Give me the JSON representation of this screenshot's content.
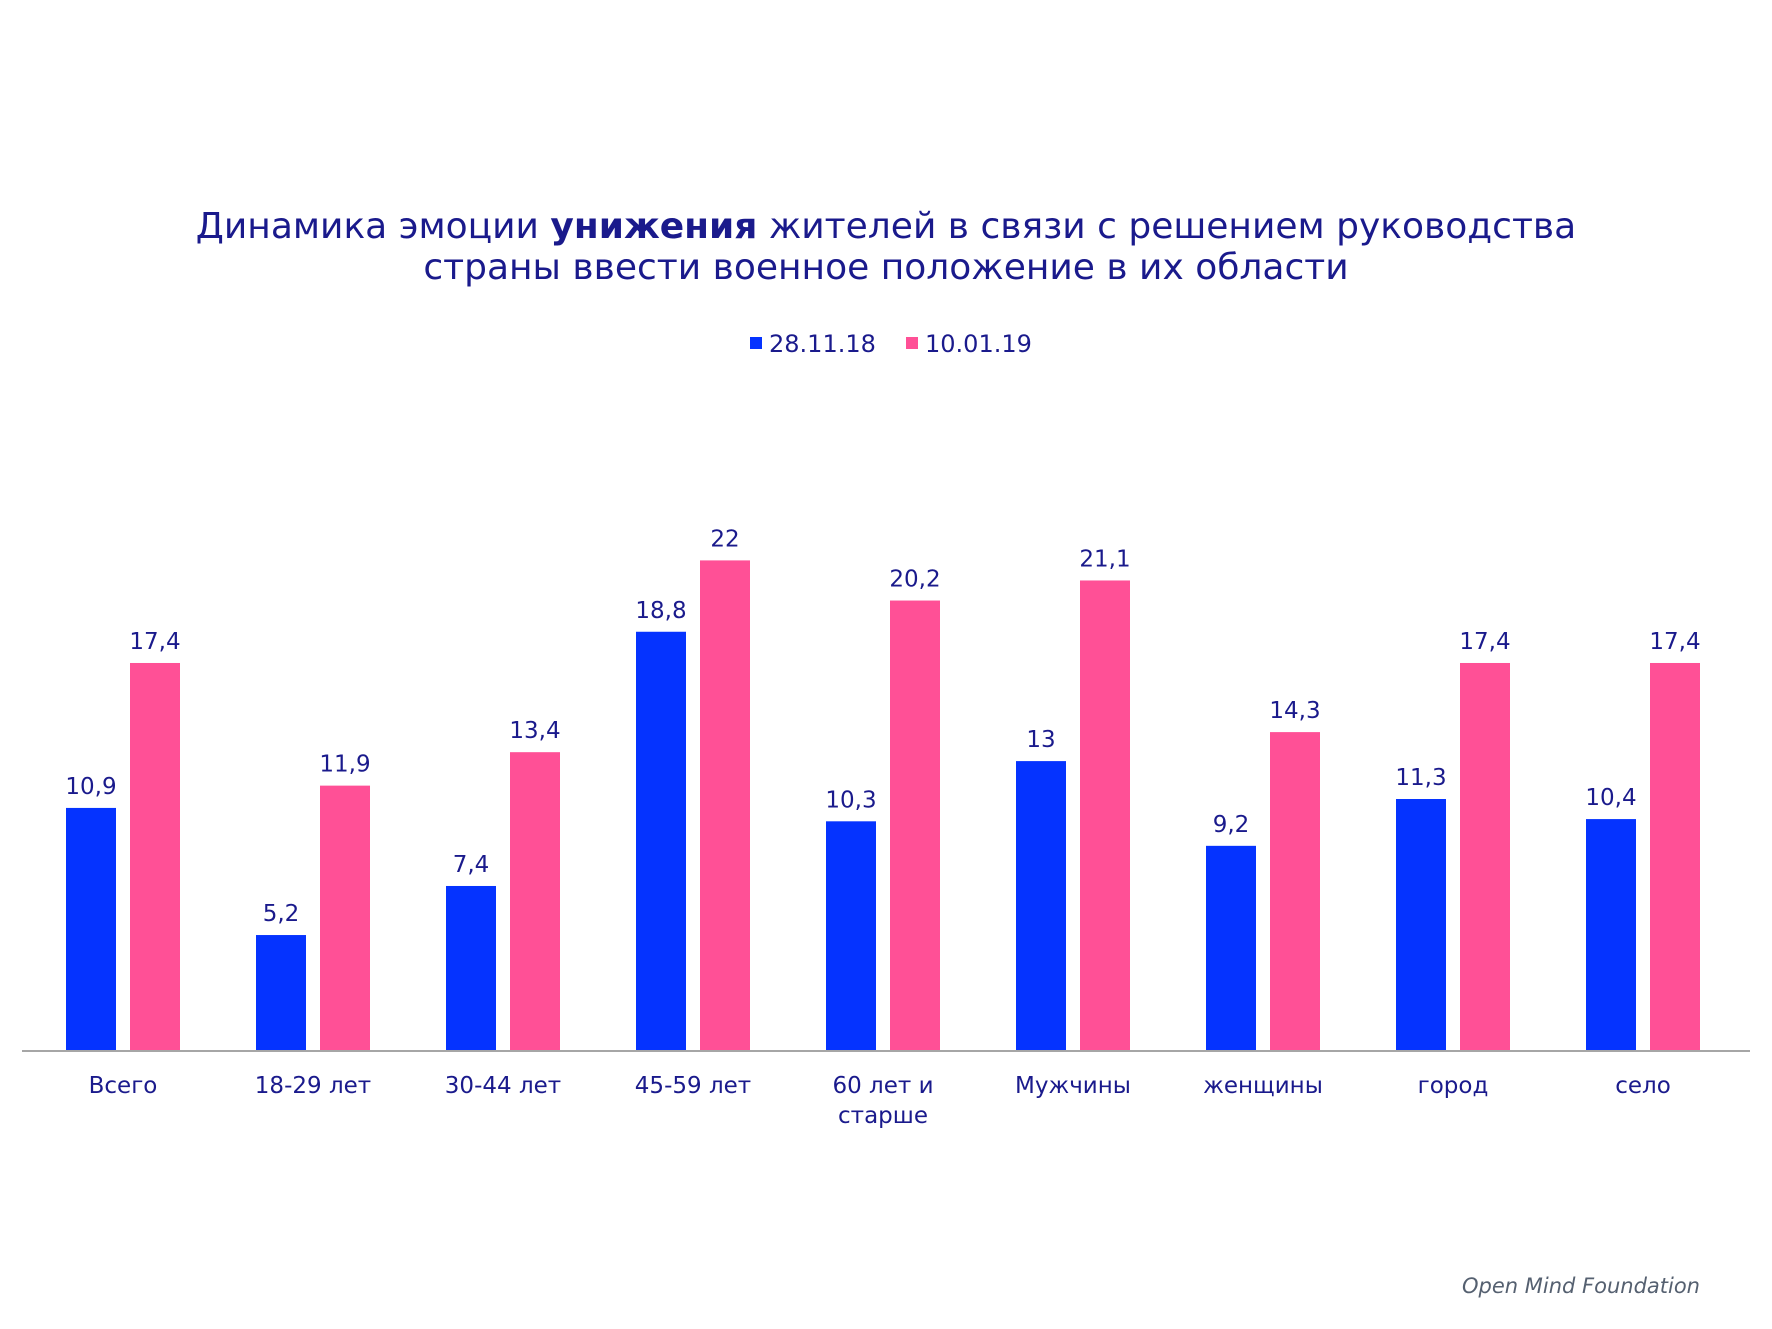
{
  "chart_data": {
    "type": "bar",
    "title": {
      "line1_pre": "Динамика эмоции ",
      "line1_bold": "унижения",
      "line1_post": " жителей в связи с решением руководства",
      "line2": "страны ввести военное положение в их области"
    },
    "categories": [
      "Всего",
      "18-29 лет",
      "30-44 лет",
      "45-59 лет",
      "60 лет и старше",
      "Мужчины",
      "женщины",
      "город",
      "село"
    ],
    "category_label_lines": [
      [
        "Всего"
      ],
      [
        "18-29 лет"
      ],
      [
        "30-44 лет"
      ],
      [
        "45-59 лет"
      ],
      [
        "60 лет и",
        "старше"
      ],
      [
        "Мужчины"
      ],
      [
        "женщины"
      ],
      [
        "город"
      ],
      [
        "село"
      ]
    ],
    "series": [
      {
        "name": "28.11.18",
        "color": "#0533ff",
        "values": [
          10.9,
          5.2,
          7.4,
          18.8,
          10.3,
          13,
          9.2,
          11.3,
          10.4
        ],
        "labels": [
          "10,9",
          "5,2",
          "7,4",
          "18,8",
          "10,3",
          "13",
          "9,2",
          "11,3",
          "10,4"
        ]
      },
      {
        "name": "10.01.19",
        "color": "#ff5096",
        "values": [
          17.4,
          11.9,
          13.4,
          22,
          20.2,
          21.1,
          14.3,
          17.4,
          17.4
        ],
        "labels": [
          "17,4",
          "11,9",
          "13,4",
          "22",
          "20,2",
          "21,1",
          "14,3",
          "17,4",
          "17,4"
        ]
      }
    ],
    "legend_position": "top-center",
    "xlabel": "",
    "ylabel": "",
    "ylim": [
      0,
      22
    ],
    "grid": false,
    "value_axis_visible": false
  },
  "watermark": "Open Mind Foundation",
  "colors": {
    "text": "#1a1a8c",
    "baseline": "#a6a6a6"
  }
}
